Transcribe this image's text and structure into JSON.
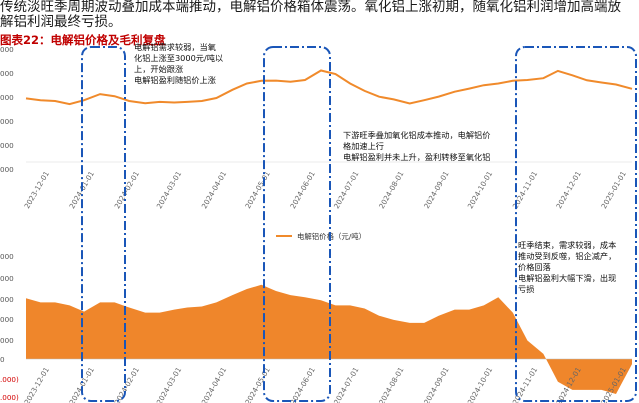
{
  "intro_lines": [
    "传统淡旺季周期波动叠加成本端推动，电解铝价格箱体震荡。氧化铝上涨初期，随氧化铝利润增加高端放",
    "解铝利润最终亏损。"
  ],
  "chart_title": "图表22：电解铝价格及毛利复盘",
  "annotations": [
    "电解铝需求较弱，当氧\n化铝上涨至3000元/吨以\n上，开始跟涨\n电解铝盈利随铝价上涨",
    "下游旺季叠加氧化铝成本推动，电解铝价\n格加速上行\n电解铝盈利并未上升，盈利转移至氧化铝",
    "旺季结束，需求较弱，成本\n推动受到反噬，铝企减产，\n价格回落\n电解铝盈利大幅下滑，出现\n亏损"
  ],
  "colors": {
    "line": "#f08a2b",
    "area": "#ef862b",
    "box": "#1a56b8",
    "title": "#c00000",
    "negative_tick": "#d40000"
  },
  "chart_data": [
    {
      "type": "line",
      "name": "upper-price-chart",
      "series": [
        {
          "name": "电解铝价格（元/吨）"
        }
      ],
      "x_ticks": [
        "2023-12-01",
        "2024-01-01",
        "2024-02-01",
        "2024-03-01",
        "2024-04-01",
        "2024-05-01",
        "2024-06-01",
        "2024-07-01",
        "2024-08-01",
        "2024-09-01",
        "2024-10-01",
        "2024-11-01",
        "2024-12-01",
        "2025-01-01"
      ],
      "y_tick_labels": [
        "000",
        "000",
        "000",
        "000",
        "000",
        "000"
      ],
      "x": [
        "2023-11-15",
        "2023-11-25",
        "2023-12-05",
        "2023-12-15",
        "2023-12-25",
        "2024-01-05",
        "2024-01-15",
        "2024-01-25",
        "2024-02-05",
        "2024-02-15",
        "2024-02-25",
        "2024-03-05",
        "2024-03-15",
        "2024-03-25",
        "2024-04-05",
        "2024-04-15",
        "2024-04-25",
        "2024-05-05",
        "2024-05-15",
        "2024-05-25",
        "2024-06-05",
        "2024-06-15",
        "2024-06-25",
        "2024-07-05",
        "2024-07-15",
        "2024-07-25",
        "2024-08-05",
        "2024-08-15",
        "2024-08-25",
        "2024-09-05",
        "2024-09-15",
        "2024-09-25",
        "2024-10-05",
        "2024-10-15",
        "2024-10-25",
        "2024-11-05",
        "2024-11-15",
        "2024-11-25",
        "2024-12-05",
        "2024-12-15",
        "2024-12-25",
        "2025-01-05"
      ],
      "values": [
        0.548,
        0.533,
        0.526,
        0.499,
        0.533,
        0.585,
        0.567,
        0.526,
        0.506,
        0.518,
        0.513,
        0.518,
        0.526,
        0.552,
        0.622,
        0.677,
        0.7,
        0.702,
        0.692,
        0.707,
        0.789,
        0.759,
        0.677,
        0.613,
        0.563,
        0.54,
        0.504,
        0.533,
        0.564,
        0.606,
        0.633,
        0.662,
        0.677,
        0.7,
        0.707,
        0.722,
        0.785,
        0.747,
        0.704,
        0.685,
        0.668,
        0.631
      ]
    },
    {
      "type": "area",
      "name": "lower-margin-chart",
      "series": [
        {
          "name": ""
        }
      ],
      "x_ticks": [
        "2023-12-01",
        "2024-01-01",
        "2024-02-01",
        "2024-03-01",
        "2024-04-01",
        "2024-05-01",
        "2024-06-01",
        "2024-07-01",
        "2024-08-01",
        "2024-09-01",
        "2024-10-01",
        "2024-11-01",
        "2024-12-01",
        "2025-01-01"
      ],
      "y_tick_labels": [
        "000",
        "000",
        "000",
        "000",
        "000",
        "0",
        ".000)",
        ".000)"
      ],
      "x": [
        "2023-11-15",
        "2023-11-25",
        "2023-12-05",
        "2023-12-15",
        "2023-12-25",
        "2024-01-05",
        "2024-01-15",
        "2024-01-25",
        "2024-02-05",
        "2024-02-15",
        "2024-02-25",
        "2024-03-05",
        "2024-03-15",
        "2024-03-25",
        "2024-04-05",
        "2024-04-15",
        "2024-04-25",
        "2024-05-05",
        "2024-05-15",
        "2024-05-25",
        "2024-06-05",
        "2024-06-15",
        "2024-06-25",
        "2024-07-05",
        "2024-07-15",
        "2024-07-25",
        "2024-08-05",
        "2024-08-15",
        "2024-08-25",
        "2024-09-05",
        "2024-09-15",
        "2024-09-25",
        "2024-10-05",
        "2024-10-15",
        "2024-10-25",
        "2024-11-05",
        "2024-11-15",
        "2024-11-25",
        "2024-12-05",
        "2024-12-15",
        "2024-12-25",
        "2025-01-05"
      ],
      "values": [
        0.59,
        0.55,
        0.55,
        0.52,
        0.46,
        0.55,
        0.55,
        0.5,
        0.45,
        0.45,
        0.48,
        0.5,
        0.51,
        0.55,
        0.62,
        0.68,
        0.72,
        0.66,
        0.62,
        0.6,
        0.57,
        0.52,
        0.52,
        0.49,
        0.42,
        0.38,
        0.35,
        0.35,
        0.42,
        0.48,
        0.48,
        0.52,
        0.6,
        0.45,
        0.18,
        0.05,
        -0.22,
        -0.3,
        -0.3,
        -0.3,
        -0.34,
        -0.05
      ]
    }
  ]
}
